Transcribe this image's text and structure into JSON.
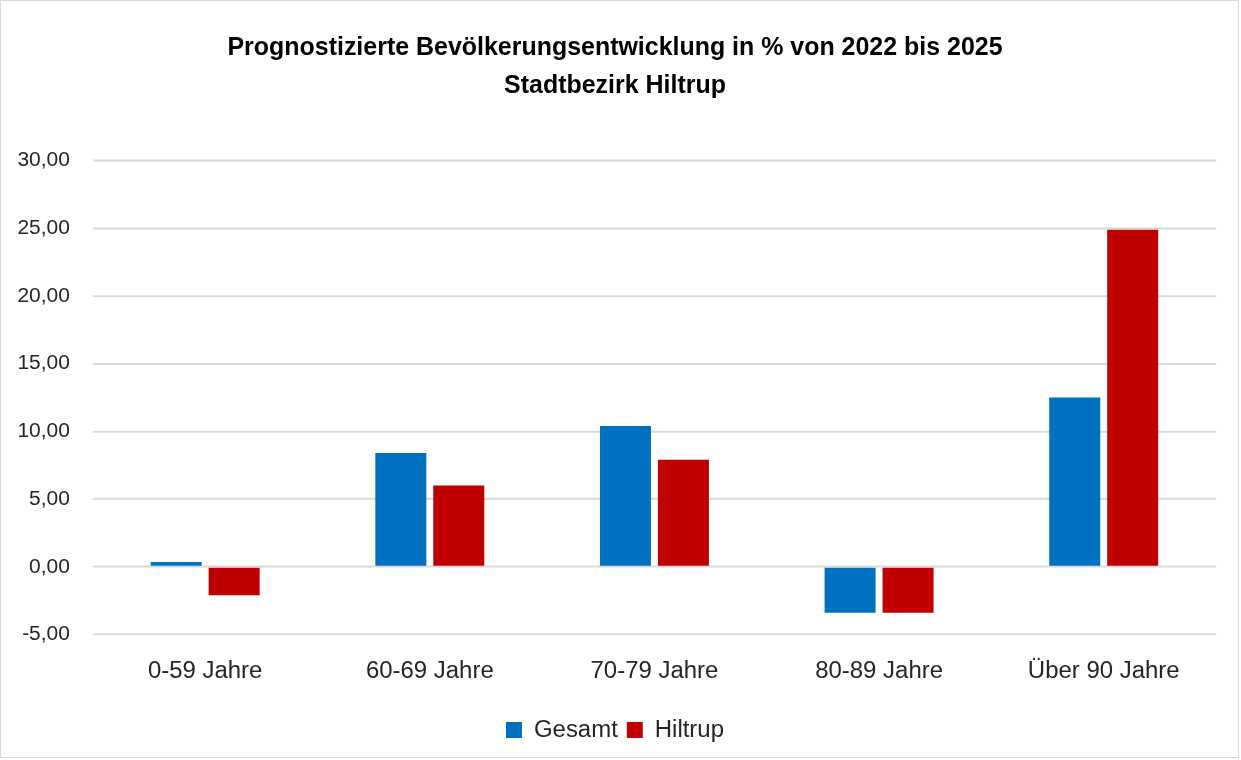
{
  "chart_data": {
    "type": "bar",
    "title": "Prognostizierte Bevölkerungsentwicklung in % von 2022 bis 2025\nStadtbezirk Hiltrup",
    "categories": [
      "0-59 Jahre",
      "60-69 Jahre",
      "70-79 Jahre",
      "80-89 Jahre",
      "Über 90 Jahre"
    ],
    "series": [
      {
        "name": "Gesamt",
        "color": "#0070c0",
        "values": [
          0.35,
          8.4,
          10.4,
          -3.4,
          12.5
        ]
      },
      {
        "name": "Hiltrup",
        "color": "#c00000",
        "values": [
          -2.1,
          6.0,
          7.9,
          -3.4,
          24.9
        ]
      }
    ],
    "ylim": [
      -5,
      30
    ],
    "yticks": [
      {
        "value": -5,
        "label": "-5,00"
      },
      {
        "value": 0,
        "label": "0,00"
      },
      {
        "value": 5,
        "label": "5,00"
      },
      {
        "value": 10,
        "label": "10,00"
      },
      {
        "value": 15,
        "label": "15,00"
      },
      {
        "value": 20,
        "label": "20,00"
      },
      {
        "value": 25,
        "label": "25,00"
      },
      {
        "value": 30,
        "label": "30,00"
      }
    ],
    "grid": "y",
    "legend": "bottom"
  }
}
